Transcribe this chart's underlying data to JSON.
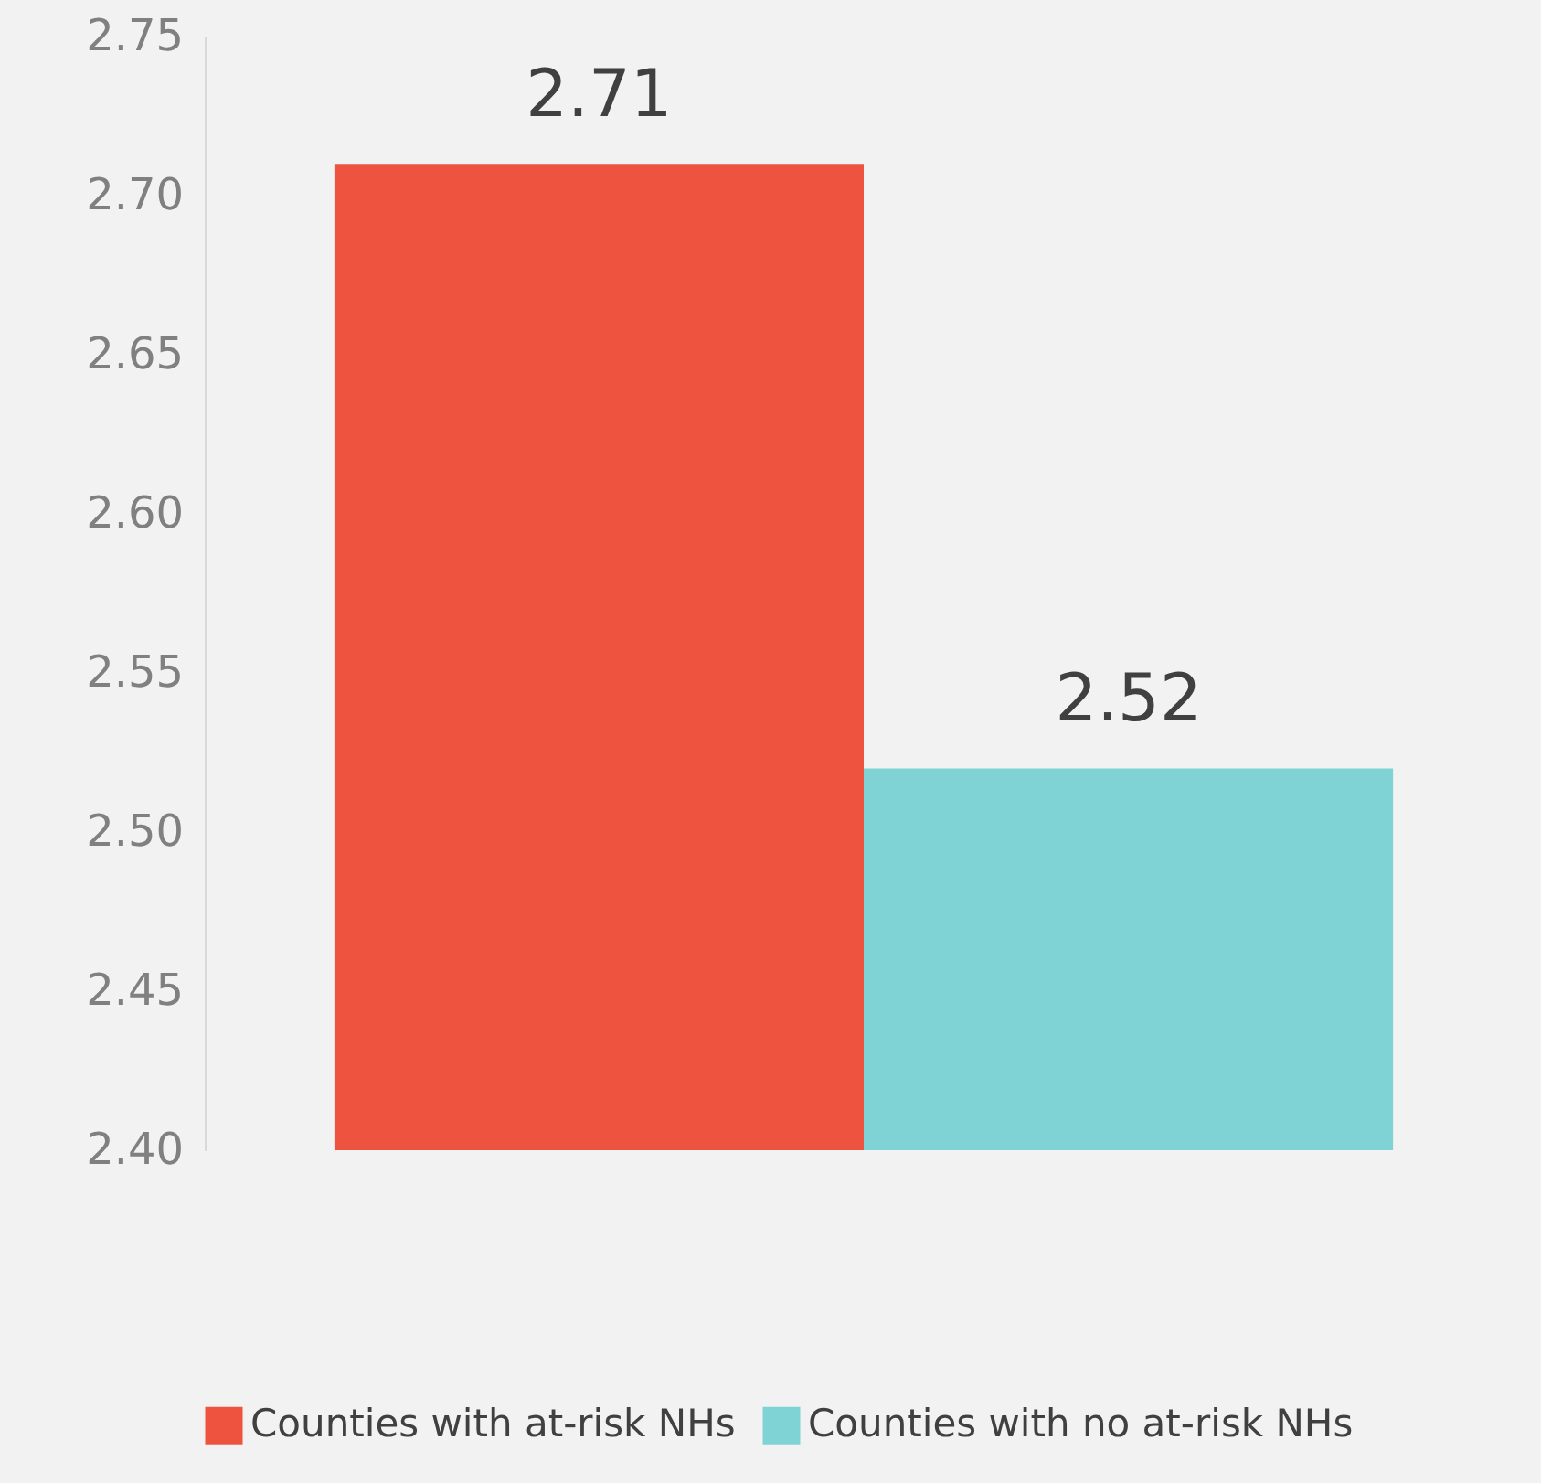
{
  "chart_data": {
    "type": "bar",
    "categories": [
      null
    ],
    "series": [
      {
        "name": "Counties with at-risk NHs",
        "color": "#ee5340",
        "values": [
          2.71
        ]
      },
      {
        "name": "Counties with no at-risk NHs",
        "color": "#7fd3d4",
        "values": [
          2.52
        ]
      }
    ],
    "ylim": [
      2.4,
      2.75
    ],
    "yticks": [
      {
        "value": 2.4,
        "label": "2.40"
      },
      2.45,
      {
        "value": 2.5,
        "label": "2.50"
      },
      2.55,
      {
        "value": 2.6,
        "label": "2.60"
      },
      2.65,
      {
        "value": 2.7,
        "label": "2.70"
      },
      2.75
    ],
    "data_labels": true,
    "legend": "bottom",
    "grid": false
  }
}
